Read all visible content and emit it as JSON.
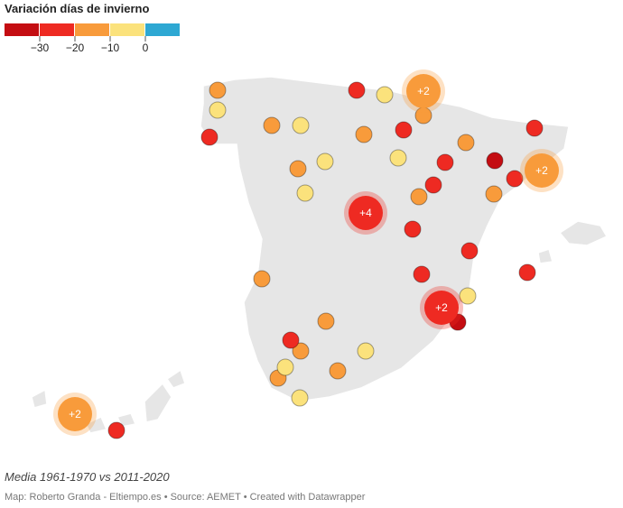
{
  "title": "Variación días de invierno",
  "legend": {
    "colors": [
      "#c40d12",
      "#ee2a22",
      "#f89b3b",
      "#fbe27c",
      "#2ea8d3"
    ],
    "ticks": [
      {
        "value": -30,
        "label": "−30"
      },
      {
        "value": -20,
        "label": "−20"
      },
      {
        "value": -10,
        "label": "−10"
      },
      0
    ]
  },
  "bubbles": [
    "+2",
    "+2",
    "+4",
    "+2",
    "+2"
  ],
  "note": "Media 1961-1970 vs 2011-2020",
  "source": "Map: Roberto Granda - Eltiempo.es • Source: AEMET • Created with Datawrapper"
}
